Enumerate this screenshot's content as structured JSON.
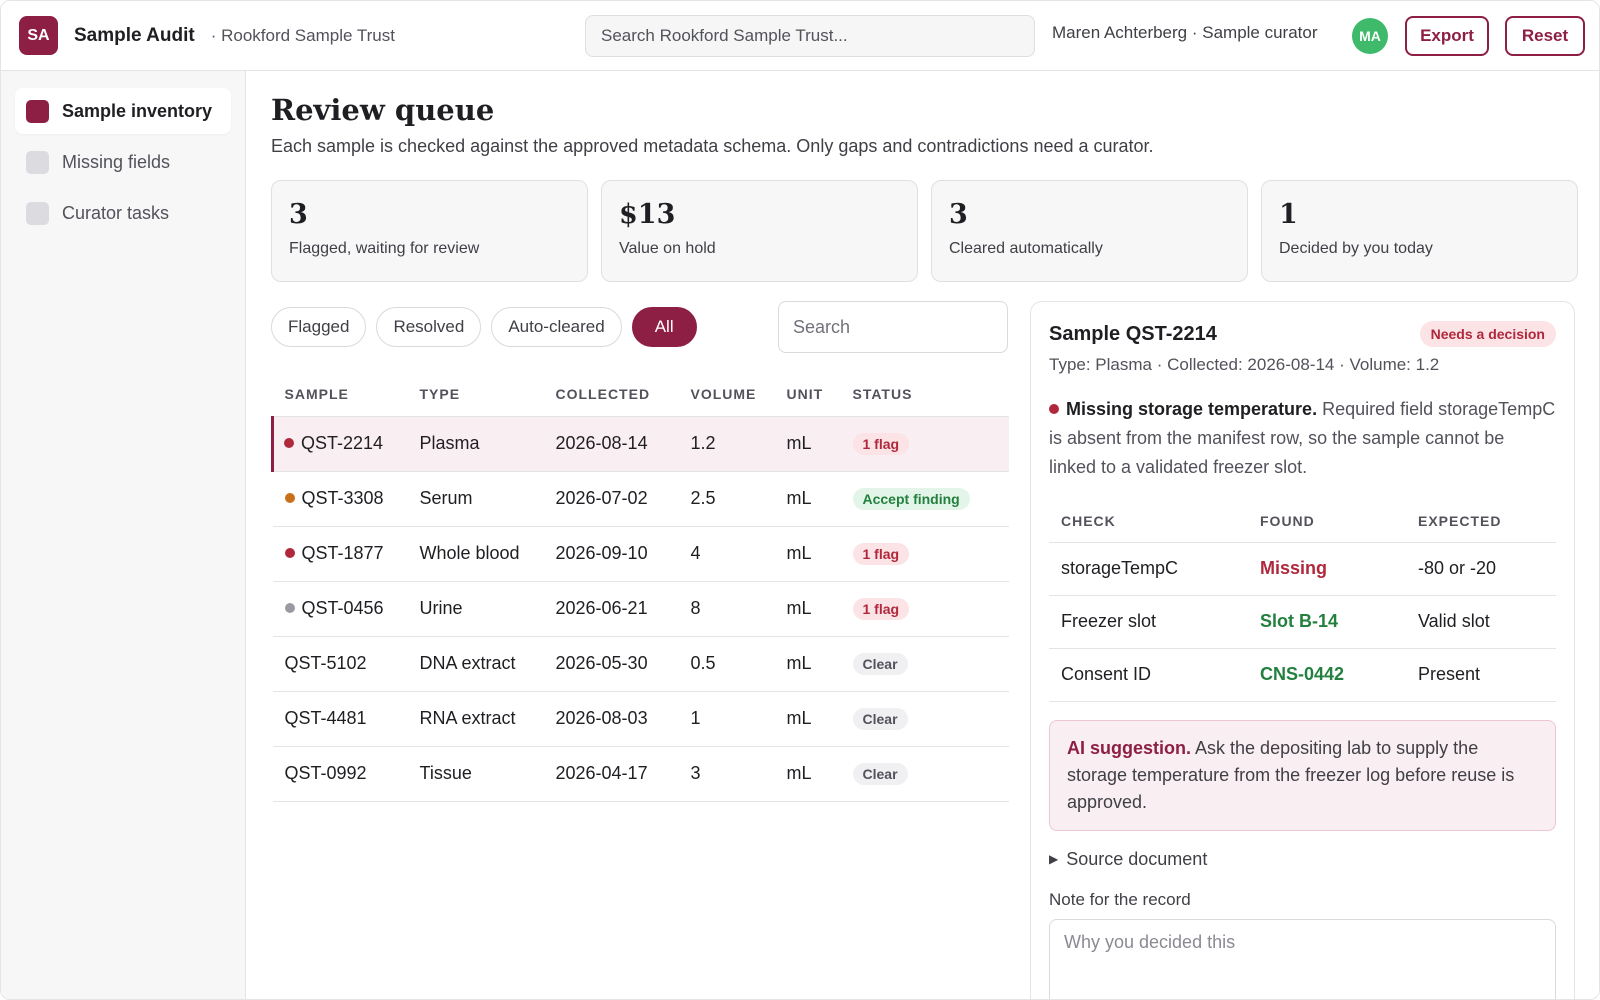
{
  "header": {
    "logo_text": "SA",
    "app_title": "Sample Audit",
    "org": "· Rookford Sample Trust",
    "search_placeholder": "Search Rookford Sample Trust...",
    "user": "Maren Achterberg · Sample curator",
    "avatar": "MA",
    "export_label": "Export",
    "reset_label": "Reset"
  },
  "sidebar": {
    "items": [
      {
        "label": "Sample inventory",
        "active": true
      },
      {
        "label": "Missing fields",
        "active": false
      },
      {
        "label": "Curator tasks",
        "active": false
      }
    ]
  },
  "page": {
    "title": "Review queue",
    "subtitle": "Each sample is checked against the approved metadata schema. Only gaps and contradictions need a curator."
  },
  "stats": [
    {
      "value": "3",
      "label": "Flagged, waiting for review"
    },
    {
      "value": "$13",
      "label": "Value on hold"
    },
    {
      "value": "3",
      "label": "Cleared automatically"
    },
    {
      "value": "1",
      "label": "Decided by you today"
    }
  ],
  "filters": {
    "chips": [
      "Flagged",
      "Resolved",
      "Auto-cleared",
      "All"
    ],
    "active": "All",
    "search_placeholder": "Search"
  },
  "table": {
    "columns": [
      "SAMPLE",
      "TYPE",
      "COLLECTED",
      "VOLUME",
      "UNIT",
      "STATUS"
    ],
    "rows": [
      {
        "sample": "QST-2214",
        "type": "Plasma",
        "collected": "2026-08-14",
        "volume": "1.2",
        "unit": "mL",
        "status": "1 flag",
        "status_kind": "flag",
        "dot": "#b0283c",
        "selected": true
      },
      {
        "sample": "QST-3308",
        "type": "Serum",
        "collected": "2026-07-02",
        "volume": "2.5",
        "unit": "mL",
        "status": "Accept finding",
        "status_kind": "accept",
        "dot": "#c9701a",
        "selected": false
      },
      {
        "sample": "QST-1877",
        "type": "Whole blood",
        "collected": "2026-09-10",
        "volume": "4",
        "unit": "mL",
        "status": "1 flag",
        "status_kind": "flag",
        "dot": "#b0283c",
        "selected": false
      },
      {
        "sample": "QST-0456",
        "type": "Urine",
        "collected": "2026-06-21",
        "volume": "8",
        "unit": "mL",
        "status": "1 flag",
        "status_kind": "flag",
        "dot": "#9a9aa3",
        "selected": false
      },
      {
        "sample": "QST-5102",
        "type": "DNA extract",
        "collected": "2026-05-30",
        "volume": "0.5",
        "unit": "mL",
        "status": "Clear",
        "status_kind": "clear",
        "dot": null,
        "selected": false
      },
      {
        "sample": "QST-4481",
        "type": "RNA extract",
        "collected": "2026-08-03",
        "volume": "1",
        "unit": "mL",
        "status": "Clear",
        "status_kind": "clear",
        "dot": null,
        "selected": false
      },
      {
        "sample": "QST-0992",
        "type": "Tissue",
        "collected": "2026-04-17",
        "volume": "3",
        "unit": "mL",
        "status": "Clear",
        "status_kind": "clear",
        "dot": null,
        "selected": false
      }
    ]
  },
  "detail": {
    "title": "Sample QST-2214",
    "badge": "Needs a decision",
    "meta": "Type: Plasma · Collected: 2026-08-14 · Volume: 1.2",
    "issue_title": "Missing storage temperature.",
    "issue_text": " Required field storageTempC is absent from the manifest row, so the sample cannot be linked to a validated freezer slot.",
    "check_columns": [
      "CHECK",
      "FOUND",
      "EXPECTED"
    ],
    "checks": [
      {
        "check": "storageTempC",
        "found": "Missing",
        "expected": "-80 or -20",
        "ok": false
      },
      {
        "check": "Freezer slot",
        "found": "Slot B-14",
        "expected": "Valid slot",
        "ok": true
      },
      {
        "check": "Consent ID",
        "found": "CNS-0442",
        "expected": "Present",
        "ok": true
      }
    ],
    "ai_label": "AI suggestion.",
    "ai_text": " Ask the depositing lab to supply the storage temperature from the freezer log before reuse is approved.",
    "source_label": "Source document",
    "note_label": "Note for the record",
    "note_placeholder": "Why you decided this"
  },
  "colors": {
    "accent": "#8e1f44",
    "avatar": "#3fba6b",
    "flag": "#b0283c",
    "ok": "#23803f"
  }
}
